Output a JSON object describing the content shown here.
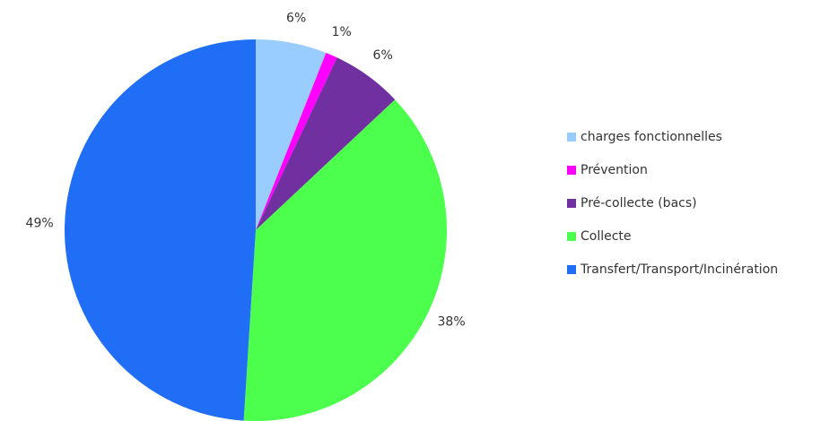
{
  "chart_data": {
    "type": "pie",
    "categories": [
      "charges fonctionnelles",
      "Prévention",
      "Pré-collecte (bacs)",
      "Collecte",
      "Transfert/Transport/Incinération"
    ],
    "values": [
      6,
      1,
      6,
      38,
      49
    ],
    "value_labels": [
      "6%",
      "1%",
      "6%",
      "38%",
      "49%"
    ],
    "colors": [
      "#99ccff",
      "#ff00ff",
      "#7030a0",
      "#4cff4c",
      "#1f6ef5"
    ],
    "legend": "right"
  }
}
